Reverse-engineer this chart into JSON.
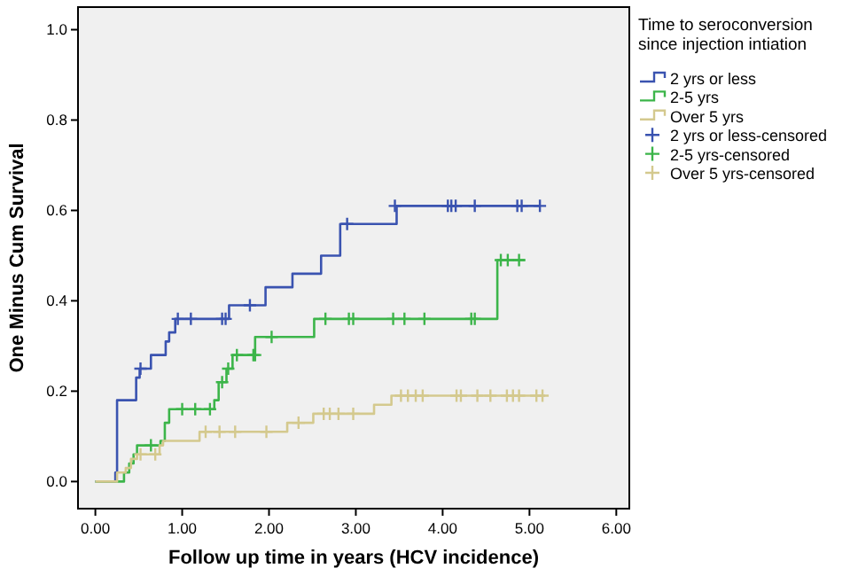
{
  "chart_data": {
    "type": "step",
    "xlabel": "Follow up time in years (HCV incidence)",
    "ylabel": "One Minus Cum Survival",
    "legend_title": "Time to seroconversion since injection intiation",
    "legend": "right",
    "grid": false,
    "xlim": [
      -0.2,
      6.15
    ],
    "ylim": [
      -0.06,
      1.05
    ],
    "xticks": [
      {
        "value": 0,
        "label": "0.00"
      },
      {
        "value": 1,
        "label": "1.00"
      },
      {
        "value": 2,
        "label": "2.00"
      },
      {
        "value": 3,
        "label": "3.00"
      },
      {
        "value": 4,
        "label": "4.00"
      },
      {
        "value": 5,
        "label": "5.00"
      },
      {
        "value": 6,
        "label": "6.00"
      }
    ],
    "yticks": [
      {
        "value": 0,
        "label": "0.0"
      },
      {
        "value": 0.2,
        "label": "0.2"
      },
      {
        "value": 0.4,
        "label": "0.4"
      },
      {
        "value": 0.6,
        "label": "0.6"
      },
      {
        "value": 0.8,
        "label": "0.8"
      },
      {
        "value": 1,
        "label": "1.0"
      }
    ],
    "series": [
      {
        "name": "2 yrs or less",
        "color": "#3a53b0",
        "x": [
          0,
          0.23,
          0.25,
          0.47,
          0.51,
          0.64,
          0.81,
          0.85,
          0.92,
          1.54,
          1.96,
          2.27,
          2.6,
          2.82,
          3.47,
          5.12
        ],
        "values": [
          0,
          0.02,
          0.18,
          0.23,
          0.25,
          0.28,
          0.31,
          0.33,
          0.36,
          0.39,
          0.43,
          0.46,
          0.5,
          0.57,
          0.61,
          0.61
        ]
      },
      {
        "name": "2-5 yrs",
        "color": "#3cb54a",
        "x": [
          0,
          0.33,
          0.39,
          0.44,
          0.48,
          0.75,
          0.8,
          0.85,
          1.37,
          1.42,
          1.51,
          1.58,
          1.84,
          2.52,
          4.63,
          4.95
        ],
        "values": [
          0,
          0.02,
          0.04,
          0.06,
          0.08,
          0.09,
          0.13,
          0.16,
          0.18,
          0.22,
          0.25,
          0.28,
          0.32,
          0.36,
          0.49,
          0.49
        ]
      },
      {
        "name": "Over 5 yrs",
        "color": "#d4c98e",
        "x": [
          0,
          0.25,
          0.35,
          0.41,
          0.48,
          0.74,
          0.78,
          1.2,
          2.21,
          2.51,
          3.21,
          3.41,
          5.18
        ],
        "values": [
          0,
          0.02,
          0.03,
          0.05,
          0.06,
          0.08,
          0.09,
          0.11,
          0.13,
          0.15,
          0.17,
          0.19,
          0.19
        ]
      },
      {
        "name": "2 yrs or less-censored",
        "type": "scatter",
        "marker": "cross",
        "color": "#3a53b0",
        "x": [
          0.52,
          0.95,
          1.1,
          1.46,
          1.5,
          1.78,
          2.9,
          3.45,
          4.06,
          4.1,
          4.15,
          4.37,
          4.86,
          4.91,
          5.12
        ],
        "values": [
          0.25,
          0.36,
          0.36,
          0.36,
          0.36,
          0.39,
          0.57,
          0.61,
          0.61,
          0.61,
          0.61,
          0.61,
          0.61,
          0.61,
          0.61
        ]
      },
      {
        "name": "2-5 yrs-censored",
        "type": "scatter",
        "marker": "cross",
        "color": "#3cb54a",
        "x": [
          0.64,
          1.0,
          1.15,
          1.32,
          1.46,
          1.53,
          1.63,
          1.82,
          1.84,
          2.03,
          2.65,
          2.92,
          2.97,
          3.43,
          3.56,
          3.79,
          4.33,
          4.37,
          4.67,
          4.75,
          4.88
        ],
        "values": [
          0.08,
          0.16,
          0.16,
          0.16,
          0.22,
          0.25,
          0.28,
          0.28,
          0.28,
          0.32,
          0.36,
          0.36,
          0.36,
          0.36,
          0.36,
          0.36,
          0.36,
          0.36,
          0.49,
          0.49,
          0.49
        ]
      },
      {
        "name": "Over 5 yrs-censored",
        "type": "scatter",
        "marker": "cross",
        "color": "#d4c98e",
        "x": [
          0.52,
          0.69,
          1.27,
          1.43,
          1.61,
          1.97,
          2.34,
          2.63,
          2.7,
          2.8,
          2.97,
          3.52,
          3.6,
          3.69,
          3.77,
          4.16,
          4.21,
          4.4,
          4.55,
          4.74,
          4.81,
          4.88,
          5.08,
          5.15
        ],
        "values": [
          0.06,
          0.06,
          0.11,
          0.11,
          0.11,
          0.11,
          0.13,
          0.15,
          0.15,
          0.15,
          0.15,
          0.19,
          0.19,
          0.19,
          0.19,
          0.19,
          0.19,
          0.19,
          0.19,
          0.19,
          0.19,
          0.19,
          0.19,
          0.19
        ]
      }
    ]
  }
}
